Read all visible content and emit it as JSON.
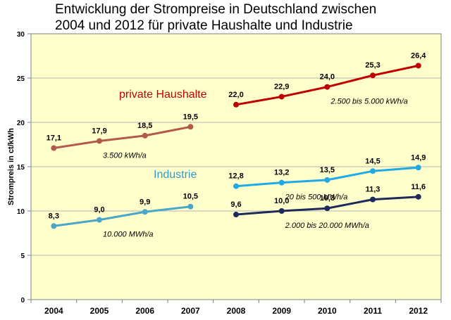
{
  "chart_data": {
    "type": "line",
    "title_line1": "Entwicklung der Strompreise in Deutschland zwischen",
    "title_line2": "2004 und 2012 für private Haushalte und Industrie",
    "ylabel": "Strompreis in ct/kWh",
    "xlabel": "",
    "ylim": [
      0,
      30
    ],
    "yticks": [
      "0",
      "5",
      "10",
      "15",
      "20",
      "25",
      "30"
    ],
    "categories": [
      "2004",
      "2005",
      "2006",
      "2007",
      "2008",
      "2009",
      "2010",
      "2011",
      "2012"
    ],
    "grid": "horizontal",
    "colors": {
      "plot_background": "#ffffcc",
      "gridline": "#b3b3b3",
      "haushalte_label": "#c00000",
      "industrie_label": "#3399cc"
    },
    "group_labels": {
      "haushalte": "private  Haushalte",
      "industrie": "Industrie"
    },
    "series": [
      {
        "name": "3.500 kWh/a",
        "color": "#b35a4a",
        "x": [
          "2004",
          "2005",
          "2006",
          "2007"
        ],
        "values": [
          17.1,
          17.9,
          18.5,
          19.5
        ],
        "labels": [
          "17,1",
          "17,9",
          "18,5",
          "19,5"
        ],
        "anno_year": "2005"
      },
      {
        "name": "2.500 bis 5.000 kWh/a",
        "color": "#c00000",
        "x": [
          "2008",
          "2009",
          "2010",
          "2011",
          "2012"
        ],
        "values": [
          22.0,
          22.9,
          24.0,
          25.3,
          26.4
        ],
        "labels": [
          "22,0",
          "22,9",
          "24,0",
          "25,3",
          "26,4"
        ],
        "anno_year": "2010"
      },
      {
        "name": "10.000 MWh/a",
        "color": "#4aa6c8",
        "x": [
          "2004",
          "2005",
          "2006",
          "2007"
        ],
        "values": [
          8.3,
          9.0,
          9.9,
          10.5
        ],
        "labels": [
          "8,3",
          "9,0",
          "9,9",
          "10,5"
        ],
        "anno_year": "2005"
      },
      {
        "name": "20 bis 500 MWh/a",
        "color": "#1fa9e6",
        "x": [
          "2008",
          "2009",
          "2010",
          "2011",
          "2012"
        ],
        "values": [
          12.8,
          13.2,
          13.5,
          14.5,
          14.9
        ],
        "labels": [
          "12,8",
          "13,2",
          "13,5",
          "14,5",
          "14,9"
        ],
        "anno_year": "2009"
      },
      {
        "name": "2.000 bis 20.000 MWh/a",
        "color": "#1f2a5a",
        "x": [
          "2008",
          "2009",
          "2010",
          "2011",
          "2012"
        ],
        "values": [
          9.6,
          10.0,
          10.3,
          11.3,
          11.6
        ],
        "labels": [
          "9,6",
          "10,0",
          "10,3",
          "11,3",
          "11,6"
        ],
        "anno_year": "2009"
      }
    ]
  }
}
